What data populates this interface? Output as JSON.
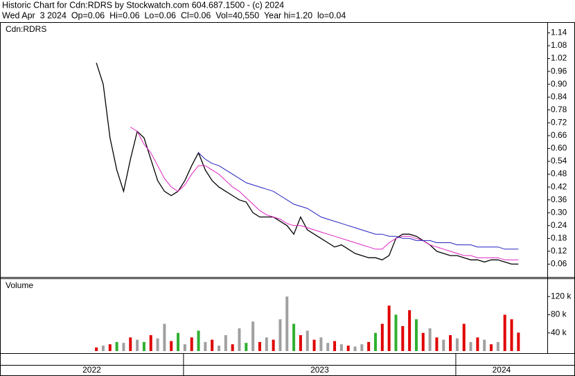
{
  "header": {
    "line1": "Historic Chart for Cdn:RDRS by Stockwatch.com 604.687.1500 - (c) 2024",
    "line2": "Wed Apr  3 2024  Op=0.06  Hi=0.06  Lo=0.06  Cl=0.06  Vol=40,550  Year hi=1.20  lo=0.04"
  },
  "chart_data": [
    {
      "type": "line",
      "label": "Cdn:RDRS",
      "x": [
        2022.68,
        2022.705,
        2022.73,
        2022.755,
        2022.78,
        2022.805,
        2022.83,
        2022.855,
        2022.88,
        2022.905,
        2022.93,
        2022.955,
        2022.98,
        2023.005,
        2023.03,
        2023.055,
        2023.08,
        2023.105,
        2023.13,
        2023.155,
        2023.18,
        2023.205,
        2023.23,
        2023.255,
        2023.28,
        2023.305,
        2023.33,
        2023.355,
        2023.38,
        2023.405,
        2023.43,
        2023.455,
        2023.48,
        2023.505,
        2023.53,
        2023.555,
        2023.58,
        2023.605,
        2023.63,
        2023.655,
        2023.68,
        2023.705,
        2023.73,
        2023.755,
        2023.78,
        2023.805,
        2023.83,
        2023.855,
        2023.88,
        2023.905,
        2023.93,
        2023.955,
        2023.98,
        2024.005,
        2024.03,
        2024.055,
        2024.08,
        2024.105,
        2024.13,
        2024.155,
        2024.18,
        2024.205,
        2024.23
      ],
      "series": [
        {
          "color": "#000000",
          "values": [
            1.0,
            0.9,
            0.65,
            0.5,
            0.4,
            0.55,
            0.68,
            0.65,
            0.55,
            0.45,
            0.4,
            0.38,
            0.4,
            0.45,
            0.52,
            0.58,
            0.5,
            0.45,
            0.42,
            0.4,
            0.38,
            0.36,
            0.35,
            0.3,
            0.28,
            0.28,
            0.28,
            0.26,
            0.24,
            0.2,
            0.28,
            0.22,
            0.2,
            0.18,
            0.16,
            0.14,
            0.15,
            0.13,
            0.11,
            0.1,
            0.09,
            0.09,
            0.08,
            0.1,
            0.18,
            0.2,
            0.2,
            0.19,
            0.17,
            0.15,
            0.12,
            0.11,
            0.1,
            0.1,
            0.09,
            0.08,
            0.08,
            0.07,
            0.08,
            0.08,
            0.07,
            0.06,
            0.06
          ]
        },
        {
          "color": "#e020c0",
          "values": [
            null,
            null,
            null,
            null,
            null,
            0.7,
            0.68,
            0.62,
            0.58,
            0.52,
            0.46,
            0.42,
            0.4,
            0.43,
            0.48,
            0.52,
            0.52,
            0.5,
            0.48,
            0.45,
            0.42,
            0.4,
            0.37,
            0.34,
            0.31,
            0.29,
            0.28,
            0.27,
            0.25,
            0.24,
            0.24,
            0.23,
            0.22,
            0.21,
            0.2,
            0.19,
            0.18,
            0.17,
            0.16,
            0.15,
            0.14,
            0.13,
            0.13,
            0.16,
            0.18,
            0.19,
            0.19,
            0.18,
            0.17,
            0.15,
            0.14,
            0.13,
            0.12,
            0.11,
            0.1,
            0.1,
            0.09,
            0.09,
            0.09,
            0.09,
            0.08,
            0.08,
            0.08
          ]
        },
        {
          "color": "#2020c0",
          "values": [
            null,
            null,
            null,
            null,
            null,
            null,
            null,
            null,
            null,
            null,
            null,
            null,
            null,
            null,
            null,
            0.58,
            0.55,
            0.53,
            0.52,
            0.5,
            0.48,
            0.46,
            0.44,
            0.43,
            0.42,
            0.41,
            0.4,
            0.38,
            0.36,
            0.34,
            0.33,
            0.32,
            0.3,
            0.28,
            0.27,
            0.26,
            0.25,
            0.24,
            0.23,
            0.22,
            0.21,
            0.2,
            0.2,
            0.19,
            0.19,
            0.18,
            0.18,
            0.17,
            0.17,
            0.17,
            0.16,
            0.16,
            0.16,
            0.15,
            0.15,
            0.15,
            0.14,
            0.14,
            0.14,
            0.14,
            0.13,
            0.13,
            0.13
          ]
        }
      ],
      "xlim": [
        2022.326,
        2024.336
      ],
      "xticks": [
        {
          "value": 2022,
          "label": "2022"
        },
        {
          "value": 2023,
          "label": "2023"
        },
        {
          "value": 2024,
          "label": "2024"
        }
      ],
      "ylim": [
        0,
        1.19
      ],
      "yticks": [
        0.06,
        0.12,
        0.18,
        0.24,
        {
          "value": 0.3,
          "label": "0.30"
        },
        0.36,
        0.42,
        0.48,
        0.54,
        {
          "value": 0.6,
          "label": "0.60"
        },
        0.66,
        0.72,
        0.78,
        0.84,
        {
          "value": 0.9,
          "label": "0.90"
        },
        0.96,
        1.02,
        1.08,
        1.14
      ]
    },
    {
      "type": "bar",
      "label": "Volume",
      "values": [
        8000,
        12000,
        15000,
        20000,
        18000,
        30000,
        25000,
        20000,
        35000,
        28000,
        60000,
        22000,
        40000,
        15000,
        30000,
        45000,
        20000,
        25000,
        12000,
        35000,
        15000,
        50000,
        18000,
        65000,
        20000,
        30000,
        25000,
        70000,
        120000,
        60000,
        35000,
        45000,
        25000,
        30000,
        18000,
        22000,
        15000,
        12000,
        10000,
        15000,
        20000,
        40000,
        60000,
        100000,
        80000,
        55000,
        90000,
        70000,
        40000,
        50000,
        30000,
        25000,
        35000,
        28000,
        60000,
        20000,
        30000,
        25000,
        15000,
        20000,
        80000,
        70000,
        40550
      ],
      "colors": [
        "#e00000",
        "#a0a0a0",
        "#e00000",
        "#30b030",
        "#a0a0a0",
        "#e00000",
        "#a0a0a0",
        "#30b030",
        "#e00000",
        "#a0a0a0",
        "#a0a0a0",
        "#e00000",
        "#30b030",
        "#a0a0a0",
        "#e00000",
        "#30b030",
        "#a0a0a0",
        "#e00000",
        "#a0a0a0",
        "#a0a0a0",
        "#e00000",
        "#a0a0a0",
        "#30b030",
        "#a0a0a0",
        "#e00000",
        "#a0a0a0",
        "#e00000",
        "#a0a0a0",
        "#a0a0a0",
        "#30b030",
        "#e00000",
        "#a0a0a0",
        "#e00000",
        "#a0a0a0",
        "#a0a0a0",
        "#e00000",
        "#a0a0a0",
        "#e00000",
        "#a0a0a0",
        "#a0a0a0",
        "#e00000",
        "#30b030",
        "#e00000",
        "#e00000",
        "#30b030",
        "#e00000",
        "#e00000",
        "#30b030",
        "#e00000",
        "#a0a0a0",
        "#e00000",
        "#a0a0a0",
        "#e00000",
        "#a0a0a0",
        "#e00000",
        "#a0a0a0",
        "#e00000",
        "#a0a0a0",
        "#e00000",
        "#a0a0a0",
        "#e00000",
        "#e00000",
        "#e00000"
      ],
      "ylim": [
        0,
        160000
      ],
      "yticks": [
        {
          "value": 40000,
          "label": "40 k"
        },
        {
          "value": 80000,
          "label": "80 k"
        },
        {
          "value": 120000,
          "label": "120 k"
        }
      ]
    }
  ]
}
